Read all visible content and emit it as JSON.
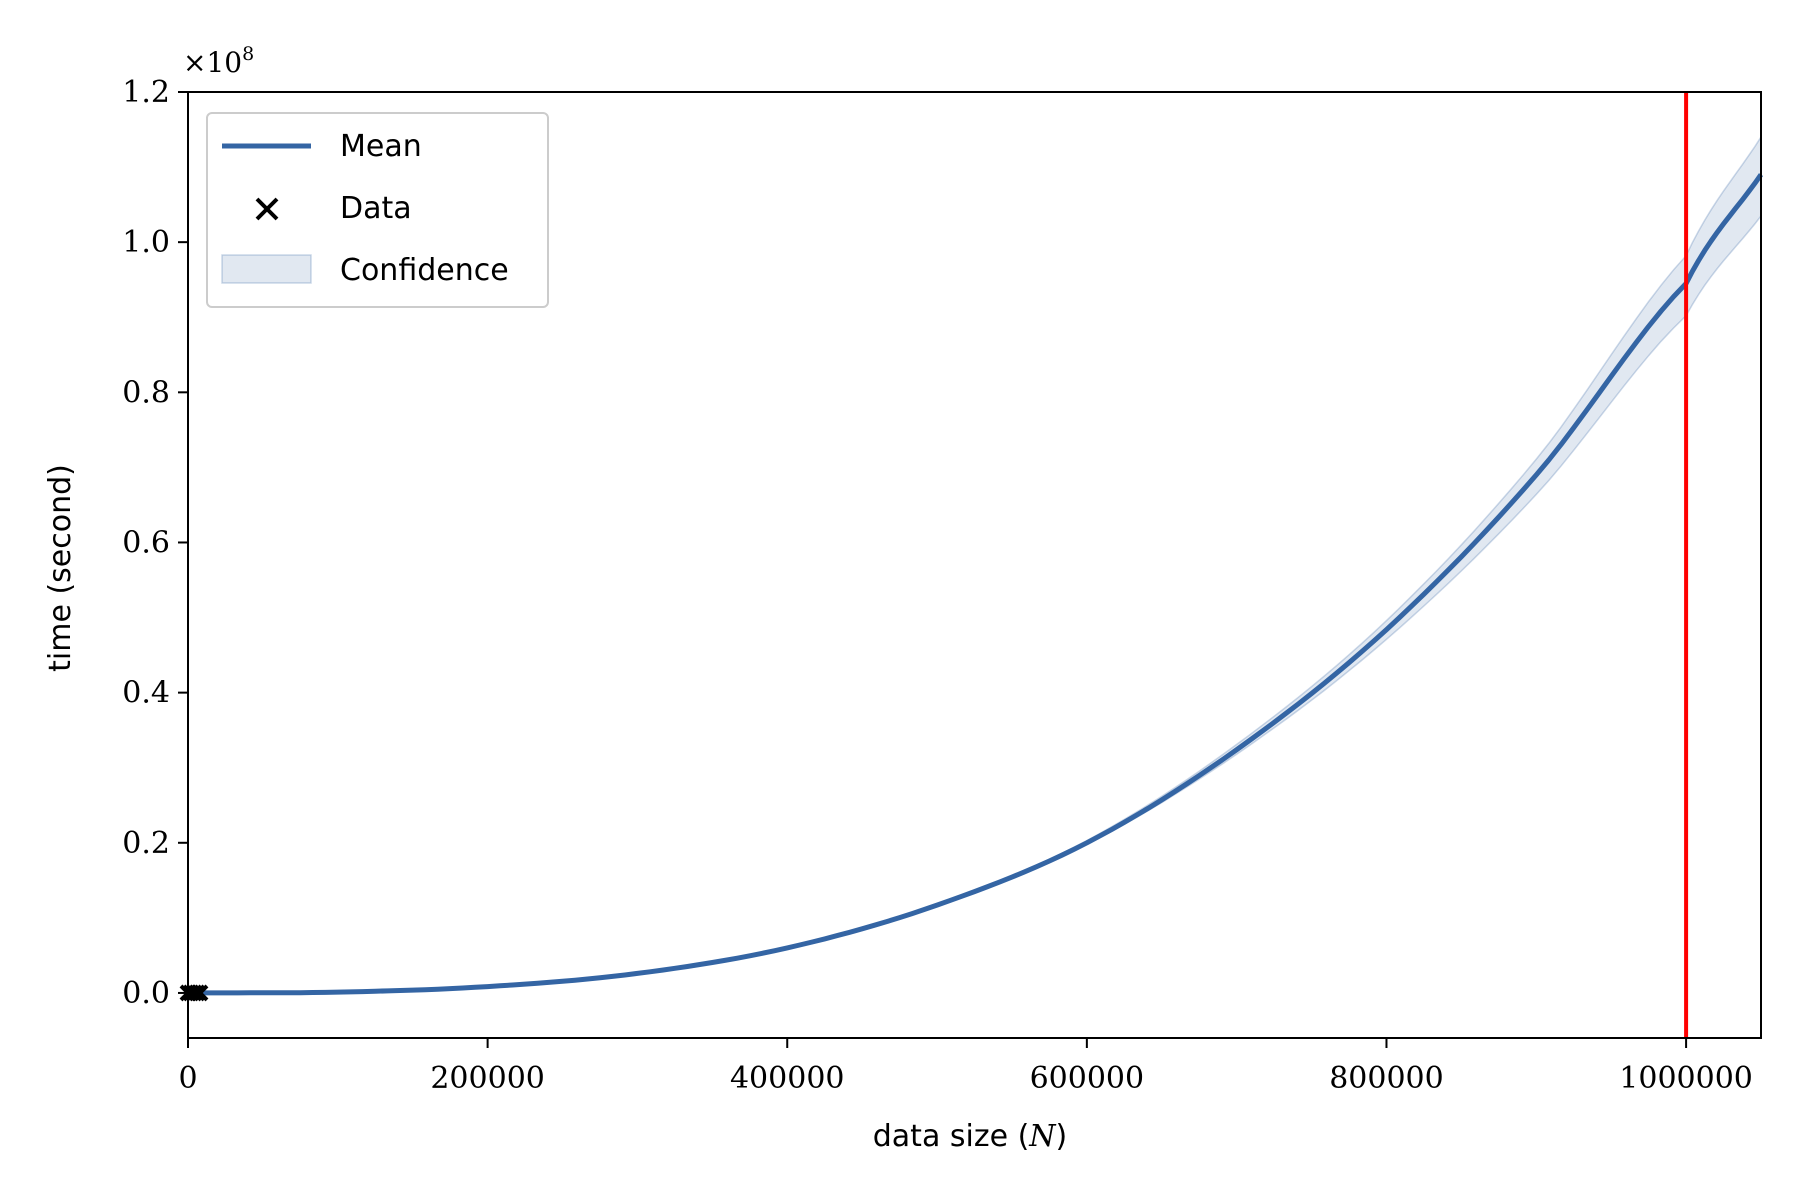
{
  "chart_data": {
    "type": "line",
    "xlabel": "data size (N)",
    "ylabel": "time (second)",
    "y_multiplier_label": "×10^8",
    "xlim": [
      0,
      1050000
    ],
    "ylim": [
      -0.06,
      1.2
    ],
    "y_scale_factor": 100000000,
    "xticks": [
      0,
      200000,
      400000,
      600000,
      800000,
      1000000
    ],
    "xtick_labels": [
      "0",
      "200000",
      "400000",
      "600000",
      "800000",
      "1000000"
    ],
    "yticks": [
      0.0,
      0.2,
      0.4,
      0.6,
      0.8,
      1.0,
      1.2
    ],
    "ytick_labels": [
      "0.0",
      "0.2",
      "0.4",
      "0.6",
      "0.8",
      "1.0",
      "1.2"
    ],
    "legend_position": "upper-left",
    "legend": [
      "Mean",
      "Data",
      "Confidence"
    ],
    "series": [
      {
        "name": "Mean",
        "color": "#3465a4",
        "x": [
          0,
          100000,
          200000,
          300000,
          400000,
          500000,
          600000,
          700000,
          800000,
          900000,
          1000000,
          1050000
        ],
        "y": [
          0.0,
          0.0011,
          0.0085,
          0.026,
          0.06,
          0.117,
          0.2,
          0.324,
          0.484,
          0.69,
          0.945,
          1.09
        ]
      }
    ],
    "confidence_band": {
      "name": "Confidence",
      "color": "#3465a4",
      "x": [
        0,
        100000,
        200000,
        300000,
        400000,
        500000,
        600000,
        700000,
        800000,
        900000,
        1000000,
        1050000
      ],
      "upper": [
        0.0,
        0.0011,
        0.0085,
        0.026,
        0.06,
        0.118,
        0.203,
        0.331,
        0.496,
        0.711,
        0.982,
        1.14
      ],
      "lower": [
        0.0,
        0.0011,
        0.0085,
        0.026,
        0.06,
        0.116,
        0.198,
        0.318,
        0.471,
        0.664,
        0.902,
        1.035
      ]
    },
    "data_points": {
      "name": "Data",
      "marker": "x",
      "color": "#000000",
      "x": [
        0,
        2000,
        4000,
        6000,
        8000
      ],
      "y": [
        0.0,
        0.0,
        0.0,
        0.0,
        0.0
      ]
    },
    "vertical_line": {
      "x": 1000000,
      "color": "#ff0000"
    }
  }
}
